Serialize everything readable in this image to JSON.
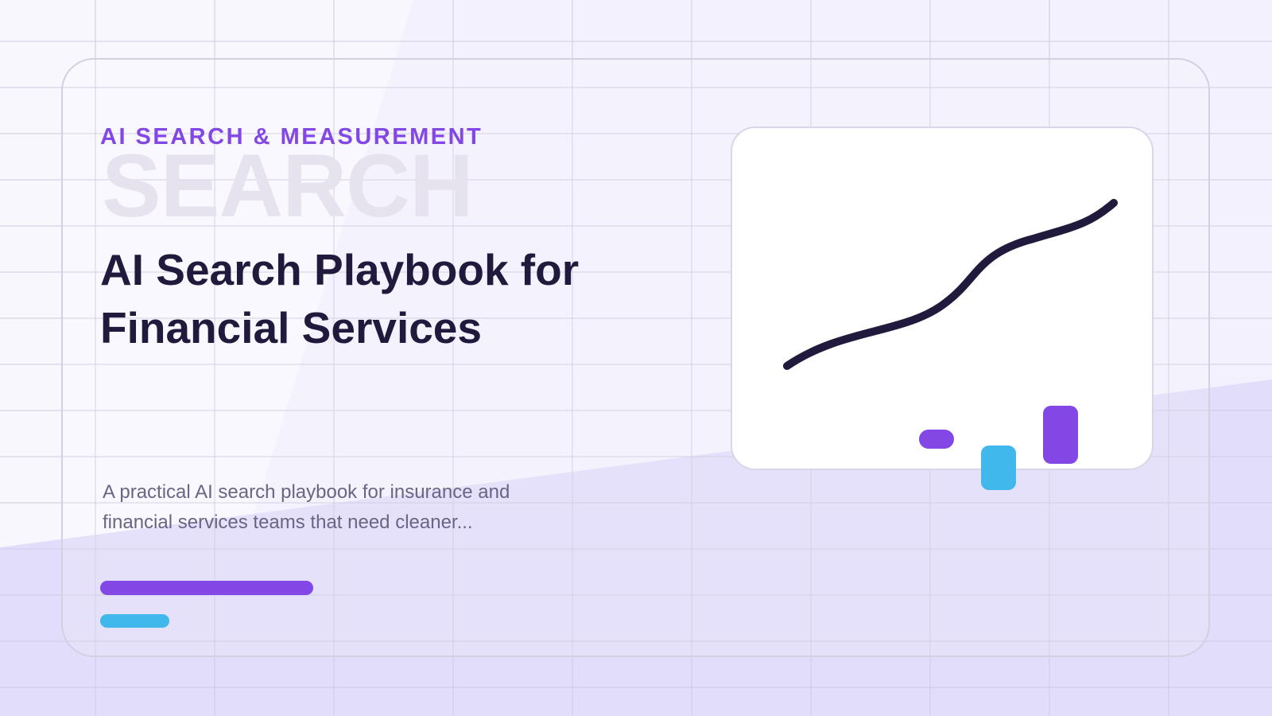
{
  "eyebrow": "AI SEARCH & MEASUREMENT",
  "watermark": "SEARCH",
  "title": "AI Search Playbook for Financial Services",
  "description": "A practical AI search playbook for insurance and financial services teams that need cleaner..."
}
